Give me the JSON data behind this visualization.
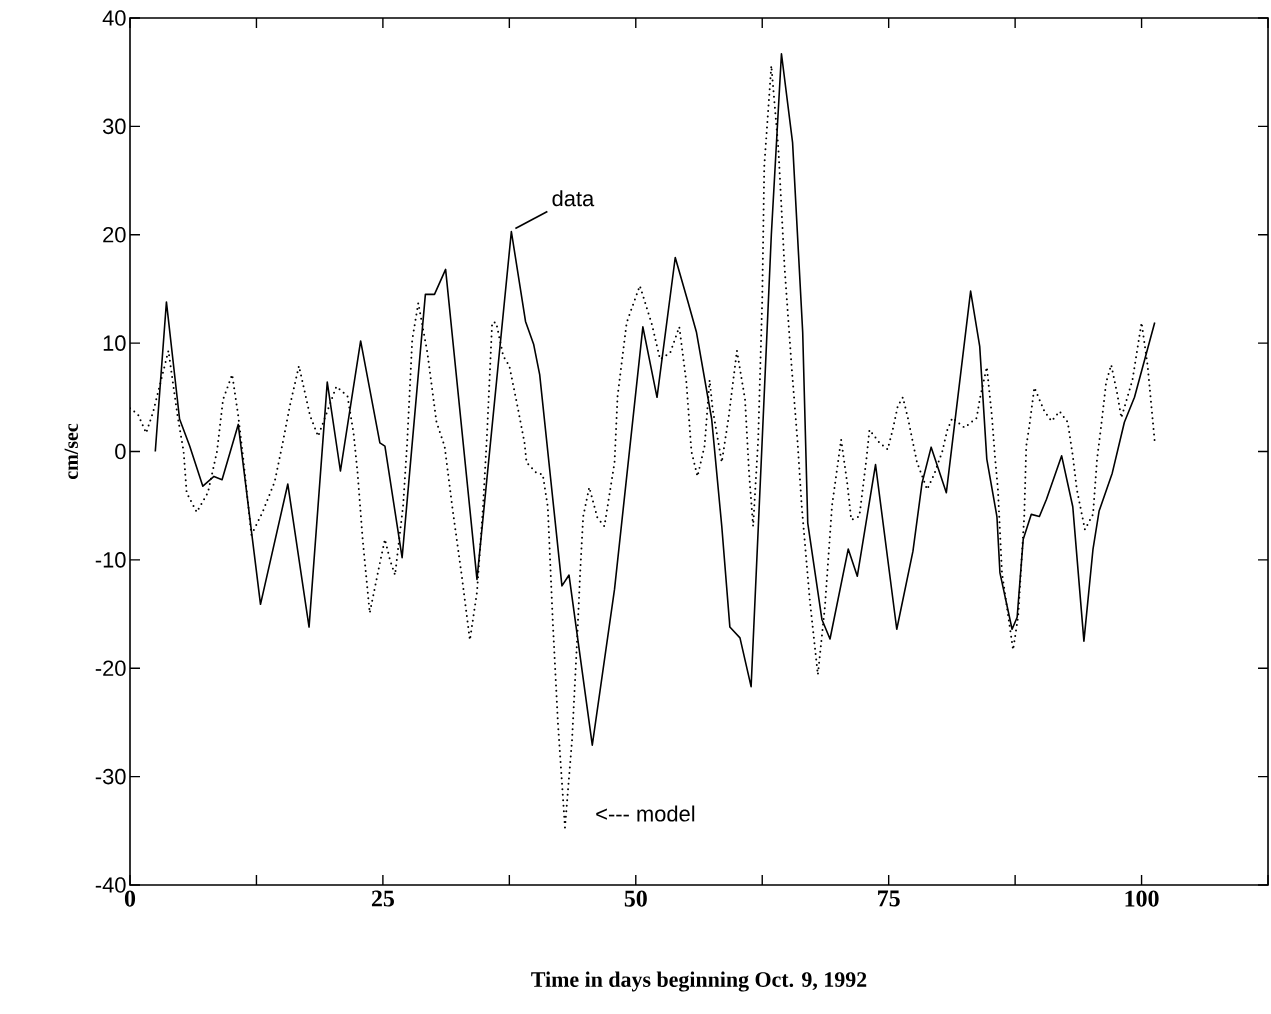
{
  "chart_data": {
    "type": "line",
    "xlabel": "Time in days beginning Oct. 9, 1992",
    "ylabel": "cm/sec",
    "xlim": [
      0,
      112.5
    ],
    "ylim": [
      -40,
      40
    ],
    "xticks": [
      0,
      {
        "value": 12.5,
        "label": null
      },
      25,
      {
        "value": 37.5,
        "label": null
      },
      50,
      {
        "value": 62.5,
        "label": null
      },
      75,
      {
        "value": 87.5,
        "label": null
      },
      100,
      {
        "value": 112.5,
        "label": null
      }
    ],
    "yticks": [
      -40,
      -30,
      -20,
      -10,
      0,
      10,
      20,
      30,
      40
    ],
    "grid": false,
    "marker": "none",
    "series": [
      {
        "color": "#000000",
        "line_style": "solid",
        "x": [
          2.5,
          3.6,
          4.9,
          5.9,
          7.2,
          8.3,
          9.1,
          10.7,
          12.9,
          15.6,
          17.7,
          19.5,
          20.8,
          22.8,
          24.7,
          25.2,
          26.9,
          29.2,
          30.1,
          31.2,
          34.3,
          37.7,
          39.1,
          39.9,
          40.5,
          42.7,
          43.4,
          45.7,
          47.9,
          50.7,
          52.1,
          53.9,
          55.1,
          56.0,
          57.5,
          58.5,
          59.3,
          60.3,
          61.4,
          62.5,
          63.4,
          64.4,
          65.5,
          66.5,
          67.0,
          68.4,
          69.2,
          71.0,
          71.9,
          73.7,
          75.8,
          77.4,
          78.3,
          79.2,
          80.7,
          83.1,
          84.0,
          84.7,
          85.7,
          86.0,
          87.2,
          87.7,
          88.3,
          89.1,
          89.9,
          90.6,
          92.1,
          93.2,
          94.3,
          95.2,
          95.8,
          97.1,
          98.3,
          99.3,
          101.3
        ],
        "values": [
          0,
          13.8,
          3,
          0.5,
          -3.2,
          -2.3,
          -2.6,
          2.5,
          -14.1,
          -3.0,
          -16.2,
          6.4,
          -1.8,
          10.2,
          0.8,
          0.5,
          -9.8,
          14.5,
          14.5,
          16.8,
          -11.8,
          20.3,
          12,
          9.9,
          7.1,
          -12.4,
          -11.4,
          -27.1,
          -12.7,
          11.5,
          5.0,
          17.9,
          14,
          11,
          3,
          -6.9,
          -16.2,
          -17.2,
          -21.7,
          1.1,
          20,
          36.7,
          28.5,
          11,
          -6.6,
          -15.5,
          -17.3,
          -9.0,
          -11.5,
          -1.2,
          -16.4,
          -9.2,
          -2.9,
          0.4,
          -3.8,
          14.8,
          9.7,
          -0.7,
          -6,
          -11.2,
          -16.4,
          -15.3,
          -8.1,
          -5.8,
          -6.0,
          -4.4,
          -0.4,
          -5.1,
          -17.5,
          -9,
          -5.5,
          -2,
          2.7,
          5,
          11.9
        ]
      },
      {
        "color": "#000000",
        "line_style": "dotted",
        "x": [
          0,
          0.8,
          1.6,
          2.3,
          3.8,
          4.7,
          5.3,
          5.6,
          6.6,
          7.7,
          8.6,
          9.2,
          10.1,
          10.7,
          11.2,
          12.0,
          13.1,
          14.3,
          15.1,
          15.8,
          16.7,
          17.8,
          18.6,
          20.4,
          21.5,
          22.1,
          22.5,
          23.0,
          23.7,
          24.7,
          25.2,
          25.7,
          26.2,
          27.0,
          27.4,
          27.9,
          28.5,
          29.4,
          30.3,
          31.1,
          31.9,
          32.8,
          33.6,
          34.3,
          34.9,
          35.3,
          35.8,
          36.2,
          36.9,
          37.5,
          38.3,
          39.0,
          39.2,
          40.2,
          40.8,
          41.3,
          41.8,
          42.3,
          43.0,
          43.7,
          44.2,
          44.5,
          44.8,
          45.4,
          46.2,
          46.9,
          47.9,
          48.2,
          49.1,
          50.4,
          51.6,
          52.4,
          53.4,
          54.3,
          55.0,
          55.5,
          56.1,
          56.8,
          57.3,
          57.6,
          58.5,
          59.2,
          60.0,
          60.8,
          61.2,
          61.6,
          62.1,
          62.5,
          62.7,
          63.4,
          64.1,
          64.7,
          65.4,
          66.0,
          66.4,
          67.2,
          68.0,
          68.7,
          69.4,
          70.3,
          70.9,
          71.3,
          72.1,
          72.8,
          73.1,
          74.1,
          74.9,
          75.4,
          75.9,
          76.4,
          76.9,
          77.4,
          77.8,
          78.8,
          79.5,
          80.3,
          80.8,
          81.3,
          82.5,
          83.7,
          84.0,
          84.7,
          85.2,
          85.5,
          85.8,
          86.2,
          87.3,
          87.8,
          88.4,
          88.6,
          88.9,
          89.4,
          90.4,
          91.1,
          91.9,
          92.7,
          93.2,
          93.6,
          94.4,
          95.2,
          95.6,
          96.0,
          96.5,
          97.0,
          97.6,
          98.0,
          99.1,
          100.0,
          100.6,
          101.3
        ],
        "values": [
          4.0,
          3.4,
          1.7,
          3.7,
          9.3,
          3.3,
          0,
          -3.8,
          -5.6,
          -3.8,
          0,
          4.8,
          7.1,
          3.3,
          -0.7,
          -7.7,
          -5.6,
          -2.8,
          0.8,
          4.2,
          7.9,
          3.3,
          1.4,
          6.0,
          5.1,
          1.7,
          -2,
          -8.1,
          -14.9,
          -10.3,
          -8.1,
          -10,
          -11.4,
          -5,
          0.8,
          10.3,
          13.7,
          9.1,
          2.7,
          0.5,
          -5.4,
          -11.5,
          -17.4,
          -13,
          -5.1,
          1.7,
          11.9,
          11.9,
          8.8,
          7.9,
          4.2,
          0.8,
          -1.0,
          -2.0,
          -2.1,
          -5.1,
          -15.8,
          -25,
          -34.7,
          -26.6,
          -17.4,
          -11.2,
          -6.0,
          -3.3,
          -6.1,
          -6.9,
          -1.0,
          5.1,
          11.9,
          15.3,
          11.7,
          8.5,
          9.1,
          11.5,
          6.4,
          0,
          -2.3,
          0.5,
          6.6,
          3.9,
          -1,
          3.3,
          9.3,
          4.8,
          -2,
          -6.9,
          1.1,
          14,
          26.3,
          35.6,
          27.9,
          17.1,
          7.9,
          0.8,
          -5,
          -13.7,
          -20.6,
          -14.3,
          -5,
          1.1,
          -2.9,
          -6.3,
          -6,
          -0.7,
          2.0,
          0.8,
          0.2,
          2,
          4.2,
          5,
          3.1,
          0.8,
          -1,
          -3.5,
          -2.1,
          0,
          2,
          3.1,
          2.2,
          3.1,
          4.8,
          7.8,
          3.3,
          -0.4,
          -3.5,
          -11.2,
          -18.3,
          -15.2,
          -6,
          0.5,
          2.3,
          5.9,
          3.7,
          2.8,
          3.7,
          2.7,
          -0.4,
          -3.5,
          -7.2,
          -5.8,
          -0.7,
          2.3,
          6.4,
          8,
          5.3,
          3.1,
          6.6,
          11.9,
          7.9,
          0.9
        ]
      }
    ],
    "annotations": [
      {
        "text": "data",
        "x": 37.7,
        "y": 20.3
      },
      {
        "text": "<--- model",
        "x": 43.0,
        "y": -34.7
      }
    ]
  }
}
